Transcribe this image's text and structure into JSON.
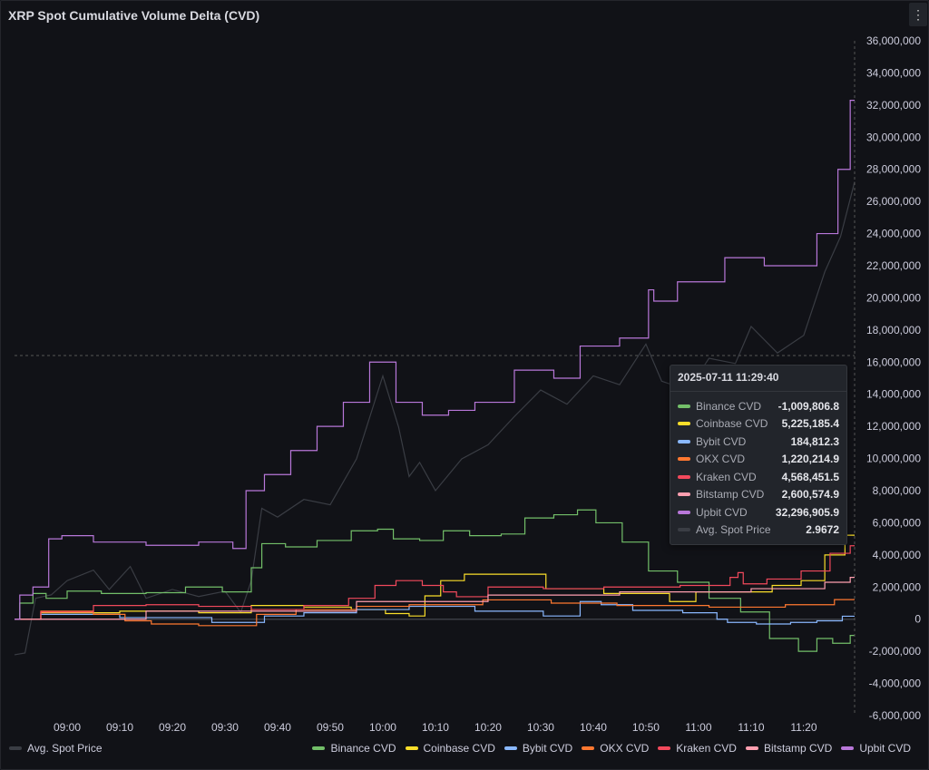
{
  "panel": {
    "title": "XRP Spot Cumulative Volume Delta (CVD)",
    "menu_icon": "vertical-ellipsis-icon"
  },
  "tooltip": {
    "time": "2025-07-11 11:29:40",
    "rows": [
      {
        "name": "Binance CVD",
        "value": "-1,009,806.8",
        "color": "#73bf69"
      },
      {
        "name": "Coinbase CVD",
        "value": "5,225,185.4",
        "color": "#fade2a"
      },
      {
        "name": "Bybit CVD",
        "value": "184,812.3",
        "color": "#8ab8ff"
      },
      {
        "name": "OKX CVD",
        "value": "1,220,214.9",
        "color": "#ff7830"
      },
      {
        "name": "Kraken CVD",
        "value": "4,568,451.5",
        "color": "#f2495c"
      },
      {
        "name": "Bitstamp CVD",
        "value": "2,600,574.9",
        "color": "#ff9fb0"
      },
      {
        "name": "Upbit CVD",
        "value": "32,296,905.9",
        "color": "#b877d9"
      },
      {
        "name": "Avg. Spot Price",
        "value": "2.9672",
        "color": "#3a3d44"
      }
    ]
  },
  "chart_data": {
    "type": "line",
    "title": "XRP Spot Cumulative Volume Delta (CVD)",
    "ylim": [
      -6000000,
      36000000
    ],
    "yticks": [
      "36,000,000",
      "34,000,000",
      "32,000,000",
      "30,000,000",
      "28,000,000",
      "26,000,000",
      "24,000,000",
      "22,000,000",
      "20,000,000",
      "18,000,000",
      "16,000,000",
      "14,000,000",
      "12,000,000",
      "10,000,000",
      "8,000,000",
      "6,000,000",
      "4,000,000",
      "2,000,000",
      "0",
      "-2,000,000",
      "-4,000,000",
      "-6,000,000"
    ],
    "ytick_values": [
      36000000,
      34000000,
      32000000,
      30000000,
      28000000,
      26000000,
      24000000,
      22000000,
      20000000,
      18000000,
      16000000,
      14000000,
      12000000,
      10000000,
      8000000,
      6000000,
      4000000,
      2000000,
      0,
      -2000000,
      -4000000,
      -6000000
    ],
    "xlim": [
      "08:50",
      "11:29:40"
    ],
    "xticks": [
      "09:00",
      "09:10",
      "09:20",
      "09:30",
      "09:40",
      "09:50",
      "10:00",
      "10:10",
      "10:20",
      "10:30",
      "10:40",
      "10:50",
      "11:00",
      "11:10",
      "11:20"
    ],
    "grid": false,
    "legend_left": {
      "name": "Avg. Spot Price",
      "color": "#3a3d44"
    },
    "legend": [
      "Binance CVD",
      "Coinbase CVD",
      "Bybit CVD",
      "OKX CVD",
      "Kraken CVD",
      "Bitstamp CVD",
      "Upbit CVD"
    ],
    "series": [
      {
        "name": "Avg. Spot Price",
        "color": "#3a3d44",
        "axis": "hidden-right",
        "points": [
          [
            "08:50",
            2.699
          ],
          [
            "08:52",
            2.7
          ],
          [
            "08:54",
            2.731
          ],
          [
            "08:57",
            2.733
          ],
          [
            "09:00",
            2.741
          ],
          [
            "09:05",
            2.747
          ],
          [
            "09:08",
            2.736
          ],
          [
            "09:12",
            2.749
          ],
          [
            "09:15",
            2.731
          ],
          [
            "09:20",
            2.736
          ],
          [
            "09:25",
            2.732
          ],
          [
            "09:30",
            2.735
          ],
          [
            "09:33",
            2.723
          ],
          [
            "09:35",
            2.741
          ],
          [
            "09:37",
            2.782
          ],
          [
            "09:40",
            2.777
          ],
          [
            "09:45",
            2.787
          ],
          [
            "09:50",
            2.784
          ],
          [
            "09:55",
            2.81
          ],
          [
            "10:00",
            2.857
          ],
          [
            "10:03",
            2.828
          ],
          [
            "10:05",
            2.8
          ],
          [
            "10:07",
            2.808
          ],
          [
            "10:10",
            2.792
          ],
          [
            "10:15",
            2.81
          ],
          [
            "10:20",
            2.818
          ],
          [
            "10:25",
            2.834
          ],
          [
            "10:30",
            2.849
          ],
          [
            "10:35",
            2.841
          ],
          [
            "10:40",
            2.857
          ],
          [
            "10:45",
            2.852
          ],
          [
            "10:50",
            2.875
          ],
          [
            "10:53",
            2.854
          ],
          [
            "10:58",
            2.849
          ],
          [
            "11:02",
            2.867
          ],
          [
            "11:07",
            2.864
          ],
          [
            "11:10",
            2.885
          ],
          [
            "11:15",
            2.87
          ],
          [
            "11:20",
            2.88
          ],
          [
            "11:24",
            2.916
          ],
          [
            "11:27",
            2.936
          ],
          [
            "11:29:40",
            2.967
          ]
        ]
      },
      {
        "name": "Binance CVD",
        "color": "#73bf69",
        "points": [
          [
            "08:50",
            0
          ],
          [
            "08:52",
            1000000
          ],
          [
            "08:55",
            1600000
          ],
          [
            "08:57",
            1300000
          ],
          [
            "09:03",
            1750000
          ],
          [
            "09:10",
            1600000
          ],
          [
            "09:20",
            1650000
          ],
          [
            "09:25",
            2000000
          ],
          [
            "09:34",
            1700000
          ],
          [
            "09:36",
            3200000
          ],
          [
            "09:38",
            4700000
          ],
          [
            "09:45",
            4500000
          ],
          [
            "09:50",
            4900000
          ],
          [
            "09:58",
            5500000
          ],
          [
            "10:00",
            5600000
          ],
          [
            "10:04",
            5000000
          ],
          [
            "10:10",
            4900000
          ],
          [
            "10:13",
            5500000
          ],
          [
            "10:20",
            5200000
          ],
          [
            "10:25",
            5300000
          ],
          [
            "10:29",
            6300000
          ],
          [
            "10:36",
            6500000
          ],
          [
            "10:38",
            6800000
          ],
          [
            "10:43",
            6000000
          ],
          [
            "10:48",
            4800000
          ],
          [
            "10:53",
            3000000
          ],
          [
            "10:59",
            2300000
          ],
          [
            "11:05",
            1300000
          ],
          [
            "11:11",
            450000
          ],
          [
            "11:16",
            -1200000
          ],
          [
            "11:22",
            -2000000
          ],
          [
            "11:23",
            -1200000
          ],
          [
            "11:28",
            -1500000
          ],
          [
            "11:29:40",
            -1009806.8
          ]
        ]
      },
      {
        "name": "Coinbase CVD",
        "color": "#fade2a",
        "points": [
          [
            "08:50",
            0
          ],
          [
            "09:00",
            400000
          ],
          [
            "09:20",
            500000
          ],
          [
            "09:30",
            400000
          ],
          [
            "09:40",
            850000
          ],
          [
            "09:50",
            750000
          ],
          [
            "09:58",
            600000
          ],
          [
            "10:03",
            350000
          ],
          [
            "10:07",
            200000
          ],
          [
            "10:09",
            1450000
          ],
          [
            "10:13",
            2400000
          ],
          [
            "10:18",
            2800000
          ],
          [
            "10:29",
            2800000
          ],
          [
            "10:33",
            1900000
          ],
          [
            "10:51",
            1600000
          ],
          [
            "10:58",
            1100000
          ],
          [
            "11:01",
            1700000
          ],
          [
            "11:11",
            1700000
          ],
          [
            "11:17",
            2100000
          ],
          [
            "11:22",
            2400000
          ],
          [
            "11:26",
            4000000
          ],
          [
            "11:29:40",
            5225185.4
          ]
        ]
      },
      {
        "name": "Bybit CVD",
        "color": "#8ab8ff",
        "points": [
          [
            "08:50",
            0
          ],
          [
            "09:00",
            300000
          ],
          [
            "09:20",
            100000
          ],
          [
            "09:35",
            -200000
          ],
          [
            "09:40",
            200000
          ],
          [
            "09:50",
            400000
          ],
          [
            "10:00",
            600000
          ],
          [
            "10:10",
            800000
          ],
          [
            "10:25",
            500000
          ],
          [
            "10:36",
            200000
          ],
          [
            "10:39",
            1100000
          ],
          [
            "10:44",
            900000
          ],
          [
            "10:51",
            550000
          ],
          [
            "11:03",
            400000
          ],
          [
            "11:04",
            0
          ],
          [
            "11:07",
            -200000
          ],
          [
            "11:15",
            -300000
          ],
          [
            "11:20",
            -200000
          ],
          [
            "11:25",
            -100000
          ],
          [
            "11:29:40",
            184812.3
          ]
        ]
      },
      {
        "name": "OKX CVD",
        "color": "#ff7830",
        "points": [
          [
            "08:50",
            0
          ],
          [
            "09:00",
            500000
          ],
          [
            "09:10",
            300000
          ],
          [
            "09:12",
            -100000
          ],
          [
            "09:20",
            -300000
          ],
          [
            "09:30",
            -400000
          ],
          [
            "09:35",
            -400000
          ],
          [
            "09:37",
            300000
          ],
          [
            "09:50",
            600000
          ],
          [
            "10:00",
            800000
          ],
          [
            "10:10",
            900000
          ],
          [
            "10:28",
            1200000
          ],
          [
            "10:36",
            1000000
          ],
          [
            "10:53",
            850000
          ],
          [
            "11:11",
            750000
          ],
          [
            "11:22",
            900000
          ],
          [
            "11:29:40",
            1220214.9
          ]
        ]
      },
      {
        "name": "Kraken CVD",
        "color": "#f2495c",
        "points": [
          [
            "08:50",
            0
          ],
          [
            "09:00",
            450000
          ],
          [
            "09:10",
            850000
          ],
          [
            "09:20",
            900000
          ],
          [
            "09:30",
            800000
          ],
          [
            "09:40",
            600000
          ],
          [
            "09:50",
            850000
          ],
          [
            "09:57",
            1300000
          ],
          [
            "10:00",
            2100000
          ],
          [
            "10:05",
            2400000
          ],
          [
            "10:10",
            2100000
          ],
          [
            "10:13",
            1700000
          ],
          [
            "10:15",
            1400000
          ],
          [
            "10:25",
            2000000
          ],
          [
            "10:36",
            1900000
          ],
          [
            "10:48",
            2000000
          ],
          [
            "11:05",
            2100000
          ],
          [
            "11:07",
            2600000
          ],
          [
            "11:08",
            2900000
          ],
          [
            "11:09",
            2200000
          ],
          [
            "11:17",
            2500000
          ],
          [
            "11:22",
            3000000
          ],
          [
            "11:28",
            4100000
          ],
          [
            "11:29:40",
            4568451.5
          ]
        ]
      },
      {
        "name": "Bitstamp CVD",
        "color": "#ff9fb0",
        "points": [
          [
            "08:50",
            0
          ],
          [
            "09:40",
            500000
          ],
          [
            "10:10",
            1100000
          ],
          [
            "10:30",
            1500000
          ],
          [
            "11:00",
            1700000
          ],
          [
            "11:20",
            1900000
          ],
          [
            "11:28",
            2300000
          ],
          [
            "11:29:40",
            2600574.9
          ]
        ]
      },
      {
        "name": "Upbit CVD",
        "color": "#b877d9",
        "points": [
          [
            "08:50",
            0
          ],
          [
            "08:52",
            1500000
          ],
          [
            "08:55",
            2000000
          ],
          [
            "08:58",
            5000000
          ],
          [
            "09:00",
            5200000
          ],
          [
            "09:10",
            4800000
          ],
          [
            "09:20",
            4600000
          ],
          [
            "09:30",
            4800000
          ],
          [
            "09:33",
            4400000
          ],
          [
            "09:35",
            8000000
          ],
          [
            "09:40",
            9000000
          ],
          [
            "09:45",
            10500000
          ],
          [
            "09:50",
            12000000
          ],
          [
            "09:55",
            13500000
          ],
          [
            "10:00",
            16000000
          ],
          [
            "10:05",
            13500000
          ],
          [
            "10:10",
            12700000
          ],
          [
            "10:15",
            13000000
          ],
          [
            "10:20",
            13500000
          ],
          [
            "10:30",
            15500000
          ],
          [
            "10:35",
            15000000
          ],
          [
            "10:40",
            17000000
          ],
          [
            "10:50",
            17500000
          ],
          [
            "10:51",
            20500000
          ],
          [
            "10:52",
            19800000
          ],
          [
            "11:00",
            21000000
          ],
          [
            "11:10",
            22500000
          ],
          [
            "11:15",
            22000000
          ],
          [
            "11:20",
            22000000
          ],
          [
            "11:25",
            24000000
          ],
          [
            "11:28",
            28000000
          ],
          [
            "11:29:40",
            32296905.9
          ]
        ]
      }
    ]
  }
}
